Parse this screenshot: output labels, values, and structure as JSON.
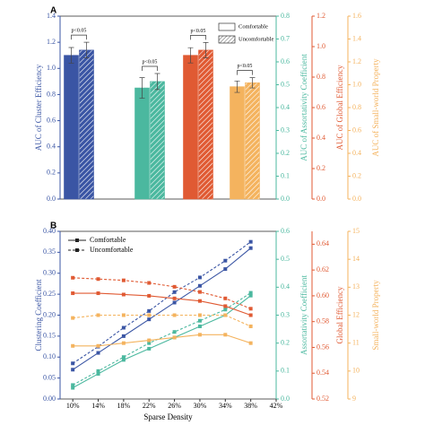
{
  "chart_data": [
    {
      "type": "bar",
      "panel": "A",
      "legend": [
        "Comfortable",
        "Uncomfortable"
      ],
      "axes": [
        {
          "label": "AUC of Cluster Efficiency",
          "color": "#3a55a4",
          "lim": [
            0,
            1.4
          ],
          "ticks": [
            {
              "value": 0,
              "label": "0.0"
            },
            {
              "value": 0.2,
              "label": "0.2"
            },
            {
              "value": 0.4,
              "label": "0.4"
            },
            {
              "value": 0.6,
              "label": "0.6"
            },
            {
              "value": 0.8,
              "label": "0.8"
            },
            {
              "value": 1,
              "label": "1.0"
            },
            {
              "value": 1.2,
              "label": "1.2"
            },
            {
              "value": 1.4,
              "label": "1.4"
            }
          ]
        },
        {
          "label": "AUC of Assortativity Coefficient",
          "color": "#4bb89f",
          "lim": [
            0,
            0.8
          ],
          "ticks": [
            {
              "value": 0,
              "label": "0.0"
            },
            0.1,
            0.2,
            0.3,
            0.4,
            0.5,
            0.6,
            0.7,
            0.8
          ]
        },
        {
          "label": "AUC of Global Efficiency",
          "color": "#e05a33",
          "lim": [
            0,
            1.2
          ],
          "ticks": [
            {
              "value": 0,
              "label": "0.0"
            },
            0.2,
            0.4,
            0.6,
            0.8,
            {
              "value": 1,
              "label": "1.0"
            },
            1.2
          ]
        },
        {
          "label": "AUC of Small-world Property",
          "color": "#f4b35e",
          "lim": [
            0,
            1.6
          ],
          "ticks": [
            {
              "value": 0,
              "label": "0.0"
            },
            0.2,
            0.4,
            0.6,
            0.8,
            {
              "value": 1,
              "label": "1.0"
            },
            1.2,
            1.4,
            1.6
          ]
        }
      ],
      "groups": [
        {
          "axis": 0,
          "color": "#3a55a4",
          "values": [
            1.1,
            1.14
          ],
          "errors": [
            0.06,
            0.06
          ],
          "annotation": "p<0.05"
        },
        {
          "axis": 1,
          "color": "#4bb89f",
          "values": [
            0.486,
            0.514
          ],
          "errors": [
            0.045,
            0.035
          ],
          "annotation": "p<0.05"
        },
        {
          "axis": 2,
          "color": "#e05a33",
          "values": [
            0.943,
            0.977
          ],
          "errors": [
            0.05,
            0.05
          ],
          "annotation": "p<0.05"
        },
        {
          "axis": 3,
          "color": "#f4b35e",
          "values": [
            0.983,
            1.017
          ],
          "errors": [
            0.05,
            0.045
          ],
          "annotation": "p<0.05"
        }
      ]
    },
    {
      "type": "line",
      "panel": "B",
      "xlabel": "Sparse Density",
      "x": [
        10,
        14,
        18,
        22,
        26,
        30,
        34,
        38
      ],
      "xlim": [
        8,
        42
      ],
      "xticks": [
        {
          "value": 10,
          "label": "10%"
        },
        {
          "value": 14,
          "label": "14%"
        },
        {
          "value": 18,
          "label": "18%"
        },
        {
          "value": 22,
          "label": "22%"
        },
        {
          "value": 26,
          "label": "26%"
        },
        {
          "value": 30,
          "label": "30%"
        },
        {
          "value": 34,
          "label": "34%"
        },
        {
          "value": 38,
          "label": "38%"
        },
        {
          "value": 42,
          "label": "42%"
        }
      ],
      "legend": [
        "Comfortable",
        "Uncomfortable"
      ],
      "axes": [
        {
          "label": "Clustering Coefficient",
          "color": "#3a55a4",
          "lim": [
            0,
            0.4
          ],
          "ticks": [
            {
              "value": 0,
              "label": "0.00"
            },
            0.05,
            {
              "value": 0.1,
              "label": "0.10"
            },
            0.15,
            {
              "value": 0.2,
              "label": "0.20"
            },
            0.25,
            {
              "value": 0.3,
              "label": "0.30"
            },
            0.35,
            {
              "value": 0.4,
              "label": "0.40"
            }
          ]
        },
        {
          "label": "Assortativity Coefficient",
          "color": "#4bb89f",
          "lim": [
            0,
            0.6
          ],
          "ticks": [
            {
              "value": 0,
              "label": "0.0"
            },
            0.1,
            0.2,
            0.3,
            0.4,
            0.5,
            0.6
          ]
        },
        {
          "label": "Global Efficiency",
          "color": "#e05a33",
          "lim": [
            0.52,
            0.65
          ],
          "ticks": [
            0.52,
            0.54,
            0.56,
            0.58,
            {
              "value": 0.6,
              "label": "0.60"
            },
            0.62,
            0.64
          ]
        },
        {
          "label": "Small-world Property",
          "color": "#f4b35e",
          "lim": [
            9,
            15
          ],
          "ticks": [
            9,
            10,
            11,
            12,
            13,
            14,
            15
          ]
        }
      ],
      "lines": [
        {
          "axis": 0,
          "color": "#3a55a4",
          "values": [
            [
              0.07,
              0.11,
              0.15,
              0.19,
              0.23,
              0.27,
              0.31,
              0.36
            ],
            [
              0.085,
              0.125,
              0.17,
              0.21,
              0.255,
              0.29,
              0.33,
              0.375
            ]
          ]
        },
        {
          "axis": 1,
          "color": "#4bb89f",
          "values": [
            [
              0.04,
              0.09,
              0.14,
              0.18,
              0.22,
              0.26,
              0.3,
              0.37
            ],
            [
              0.05,
              0.1,
              0.15,
              0.2,
              0.24,
              0.28,
              0.32,
              0.38
            ]
          ]
        },
        {
          "axis": 2,
          "color": "#e05a33",
          "values": [
            [
              0.602,
              0.602,
              0.601,
              0.6,
              0.598,
              0.596,
              0.592,
              0.585
            ],
            [
              0.614,
              0.613,
              0.612,
              0.61,
              0.607,
              0.603,
              0.598,
              0.59
            ]
          ]
        },
        {
          "axis": 3,
          "color": "#f4b35e",
          "values": [
            [
              10.9,
              10.9,
              11,
              11.1,
              11.2,
              11.3,
              11.3,
              11
            ],
            [
              11.9,
              12,
              12,
              12,
              12,
              12,
              12,
              11.6
            ]
          ]
        }
      ]
    }
  ]
}
